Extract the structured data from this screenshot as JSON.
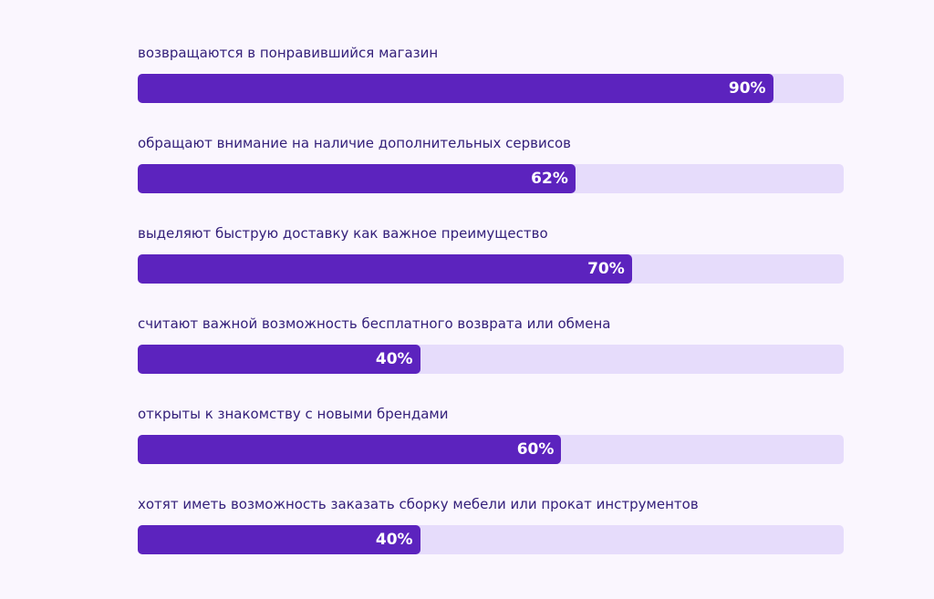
{
  "chart_data": {
    "type": "bar",
    "orientation": "horizontal",
    "categories": [
      "возвращаются в понравившийся магазин",
      "обращают внимание на наличие дополнительных сервисов",
      "выделяют быструю доставку как важное преимущество",
      "считают важной возможность бесплатного возврата или обмена",
      "открыты к знакомству с новыми брендами",
      "хотят иметь возможность заказать сборку мебели или прокат инструментов"
    ],
    "values": [
      90,
      62,
      70,
      40,
      60,
      40
    ],
    "value_labels": [
      "90%",
      "62%",
      "70%",
      "40%",
      "60%",
      "40%"
    ],
    "xlim": [
      0,
      100
    ],
    "grid": false,
    "colors": {
      "fill": "#5c23be",
      "track": "#e6dcfb",
      "background": "#faf6fe",
      "label": "#34207a"
    }
  }
}
